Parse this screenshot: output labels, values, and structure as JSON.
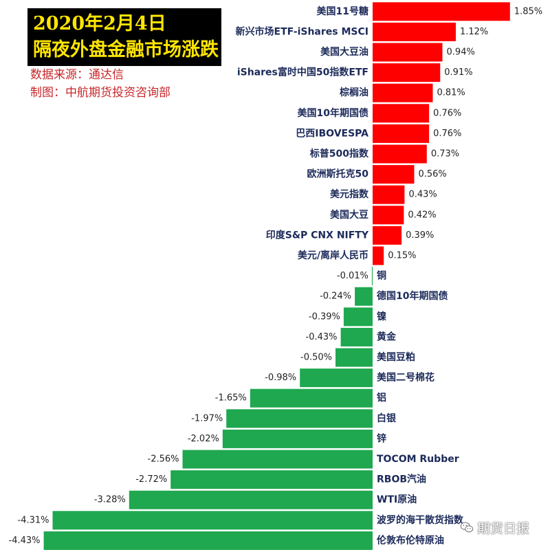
{
  "header": {
    "title_line1": "2020年2月4日",
    "title_line2": "隔夜外盘金融市场涨跌",
    "source": "数据来源：通达信",
    "maker": "制图：中航期货投资咨询部"
  },
  "watermark": {
    "text": "期货日报",
    "icon": "wechat-icon"
  },
  "colors": {
    "up": "#ff0000",
    "down": "#1fa84f",
    "label": "#1c2a5a"
  },
  "chart_data": {
    "type": "bar",
    "orientation": "horizontal",
    "unit": "%",
    "xlim": [
      -4.43,
      1.85
    ],
    "categories": [
      "美国11号糖",
      "新兴市场ETF-iShares MSCI",
      "美国大豆油",
      "iShares富时中国50指数ETF",
      "棕榈油",
      "美国10年期国债",
      "巴西IBOVESPA",
      "标普500指数",
      "欧洲斯托克50",
      "美元指数",
      "美国大豆",
      "印度S&P CNX NIFTY",
      "美元/离岸人民币",
      "铜",
      "德国10年期国债",
      "镍",
      "黄金",
      "美国豆粕",
      "美国二号棉花",
      "铝",
      "白银",
      "锌",
      "TOCOM Rubber",
      "RBOB汽油",
      "WTI原油",
      "波罗的海干散货指数",
      "伦敦布伦特原油"
    ],
    "values": [
      1.85,
      1.12,
      0.94,
      0.91,
      0.81,
      0.76,
      0.76,
      0.73,
      0.56,
      0.43,
      0.42,
      0.39,
      0.15,
      -0.01,
      -0.24,
      -0.39,
      -0.43,
      -0.5,
      -0.98,
      -1.65,
      -1.97,
      -2.02,
      -2.56,
      -2.72,
      -3.28,
      -4.31,
      -4.43
    ],
    "value_labels": [
      "1.85%",
      "1.12%",
      "0.94%",
      "0.91%",
      "0.81%",
      "0.76%",
      "0.76%",
      "0.73%",
      "0.56%",
      "0.43%",
      "0.42%",
      "0.39%",
      "0.15%",
      "-0.01%",
      "-0.24%",
      "-0.39%",
      "-0.43%",
      "-0.50%",
      "-0.98%",
      "-1.65%",
      "-1.97%",
      "-2.02%",
      "-2.56%",
      "-2.72%",
      "-3.28%",
      "-4.31%",
      "-4.43%"
    ],
    "title": "",
    "xlabel": "",
    "ylabel": "",
    "grid": false,
    "legend": "none"
  }
}
